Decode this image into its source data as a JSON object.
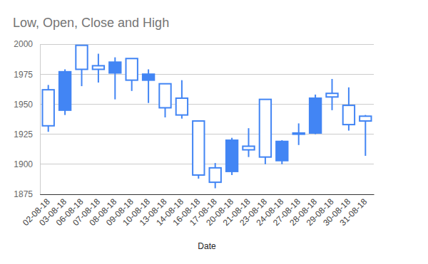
{
  "chart_data": {
    "type": "candlestick",
    "title": "Low, Open, Close and High",
    "x_label": "Date",
    "categories": [
      "02-08-18",
      "03-08-18",
      "06-08-18",
      "07-08-18",
      "08-08-18",
      "09-08-18",
      "10-08-18",
      "13-08-18",
      "14-08-18",
      "16-08-18",
      "17-08-18",
      "20-08-18",
      "21-08-18",
      "23-08-18",
      "24-08-18",
      "27-08-18",
      "28-08-18",
      "29-08-18",
      "30-08-18",
      "31-08-18"
    ],
    "open": [
      1932,
      1977,
      1979,
      1979,
      1985,
      1970,
      1975,
      1947,
      1941,
      1891,
      1885,
      1920,
      1912,
      1906,
      1919,
      1925,
      1955,
      1956,
      1933,
      1936
    ],
    "high": [
      1966,
      1979,
      1999,
      1992,
      1989,
      1988,
      1979,
      1967,
      1970,
      1936,
      1901,
      1922,
      1930,
      1954,
      1920,
      1934,
      1958,
      1971,
      1964,
      1941
    ],
    "low": [
      1927,
      1941,
      1965,
      1968,
      1954,
      1961,
      1951,
      1939,
      1938,
      1888,
      1880,
      1891,
      1906,
      1900,
      1900,
      1916,
      1925,
      1945,
      1928,
      1907
    ],
    "close": [
      1962,
      1945,
      1999,
      1982,
      1976,
      1988,
      1970,
      1967,
      1955,
      1936,
      1897,
      1894,
      1915,
      1954,
      1903,
      1926,
      1926,
      1959,
      1949,
      1940
    ],
    "color": "#4285f4",
    "ylim": [
      1875,
      2000
    ],
    "yticks": [
      1875,
      1900,
      1925,
      1950,
      1975,
      2000
    ],
    "grid": true
  }
}
